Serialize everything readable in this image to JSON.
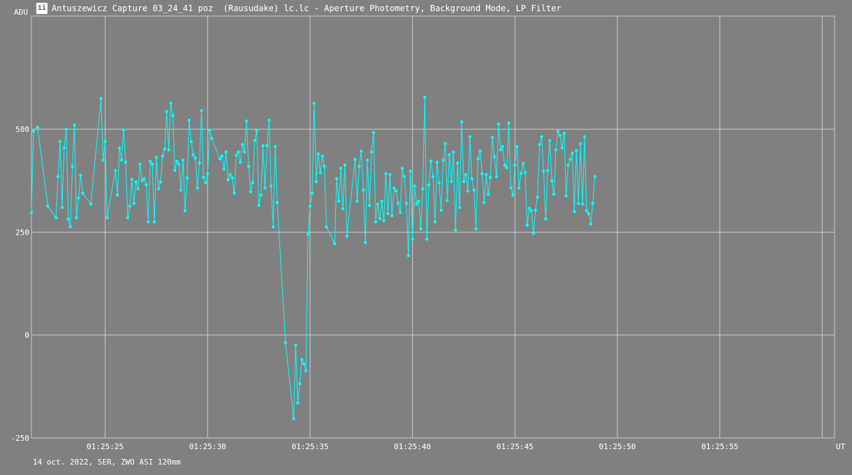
{
  "window": {
    "title": "Antuszewicz Capture 03_24_41 poz  (Rausudake) lc.lc - Aperture Photometry, Background Mode, LP Filter",
    "icon": "light-curve-app-icon"
  },
  "footer": {
    "text": "14 oct. 2022, SER, ZWO ASI 120mm"
  },
  "chart_data": {
    "type": "line",
    "ylabel": "ADU",
    "xlabel": "UT",
    "ylim": [
      -250,
      775
    ],
    "y_ticks": [
      500,
      250,
      0,
      -250
    ],
    "x_ticks": [
      "01:25:25",
      "01:25:30",
      "01:25:35",
      "01:25:40",
      "01:25:45",
      "01:25:50",
      "01:25:55"
    ],
    "x_tick_seconds": [
      25,
      30,
      35,
      40,
      45,
      50,
      55
    ],
    "x_start_seconds": 21.4,
    "x_end_seconds": 60.6,
    "series": [
      {
        "color": "#00ffff",
        "points": [
          [
            21.4,
            298
          ],
          [
            21.5,
            495
          ],
          [
            21.7,
            505
          ],
          [
            22.2,
            313
          ],
          [
            22.6,
            285
          ],
          [
            22.7,
            385
          ],
          [
            22.8,
            470
          ],
          [
            22.9,
            310
          ],
          [
            23.0,
            455
          ],
          [
            23.1,
            500
          ],
          [
            23.2,
            282
          ],
          [
            23.3,
            263
          ],
          [
            23.4,
            410
          ],
          [
            23.5,
            510
          ],
          [
            23.6,
            285
          ],
          [
            23.7,
            333
          ],
          [
            23.8,
            388
          ],
          [
            23.9,
            345
          ],
          [
            24.3,
            318
          ],
          [
            24.8,
            575
          ],
          [
            24.9,
            425
          ],
          [
            25.0,
            470
          ],
          [
            25.1,
            285
          ],
          [
            25.5,
            400
          ],
          [
            25.6,
            340
          ],
          [
            25.7,
            455
          ],
          [
            25.8,
            425
          ],
          [
            25.9,
            498
          ],
          [
            26.0,
            420
          ],
          [
            26.1,
            285
          ],
          [
            26.2,
            313
          ],
          [
            26.3,
            378
          ],
          [
            26.4,
            320
          ],
          [
            26.5,
            372
          ],
          [
            26.6,
            355
          ],
          [
            26.7,
            415
          ],
          [
            26.8,
            375
          ],
          [
            26.9,
            380
          ],
          [
            27.0,
            365
          ],
          [
            27.1,
            275
          ],
          [
            27.2,
            422
          ],
          [
            27.3,
            415
          ],
          [
            27.4,
            275
          ],
          [
            27.5,
            432
          ],
          [
            27.6,
            355
          ],
          [
            27.7,
            372
          ],
          [
            27.8,
            435
          ],
          [
            27.9,
            452
          ],
          [
            28.0,
            543
          ],
          [
            28.1,
            450
          ],
          [
            28.2,
            563
          ],
          [
            28.3,
            533
          ],
          [
            28.4,
            400
          ],
          [
            28.5,
            422
          ],
          [
            28.6,
            415
          ],
          [
            28.7,
            352
          ],
          [
            28.8,
            425
          ],
          [
            28.9,
            302
          ],
          [
            29.0,
            382
          ],
          [
            29.1,
            522
          ],
          [
            29.2,
            470
          ],
          [
            29.3,
            438
          ],
          [
            29.4,
            430
          ],
          [
            29.5,
            357
          ],
          [
            29.6,
            418
          ],
          [
            29.7,
            545
          ],
          [
            29.8,
            383
          ],
          [
            29.9,
            370
          ],
          [
            30.0,
            392
          ],
          [
            30.1,
            498
          ],
          [
            30.2,
            478
          ],
          [
            30.6,
            428
          ],
          [
            30.7,
            435
          ],
          [
            30.8,
            403
          ],
          [
            30.9,
            445
          ],
          [
            31.0,
            377
          ],
          [
            31.1,
            390
          ],
          [
            31.2,
            382
          ],
          [
            31.3,
            345
          ],
          [
            31.4,
            437
          ],
          [
            31.5,
            445
          ],
          [
            31.6,
            420
          ],
          [
            31.7,
            463
          ],
          [
            31.8,
            445
          ],
          [
            31.9,
            520
          ],
          [
            32.0,
            410
          ],
          [
            32.1,
            348
          ],
          [
            32.2,
            370
          ],
          [
            32.3,
            473
          ],
          [
            32.4,
            498
          ],
          [
            32.5,
            315
          ],
          [
            32.6,
            340
          ],
          [
            32.7,
            460
          ],
          [
            32.8,
            357
          ],
          [
            32.9,
            460
          ],
          [
            33.0,
            522
          ],
          [
            33.1,
            362
          ],
          [
            33.2,
            263
          ],
          [
            33.3,
            458
          ],
          [
            33.4,
            322
          ],
          [
            33.8,
            -18
          ],
          [
            34.2,
            -203
          ],
          [
            34.3,
            -25
          ],
          [
            34.4,
            -165
          ],
          [
            34.5,
            -118
          ],
          [
            34.6,
            -60
          ],
          [
            34.7,
            -70
          ],
          [
            34.8,
            -87
          ],
          [
            34.9,
            245
          ],
          [
            35.0,
            313
          ],
          [
            35.1,
            345
          ],
          [
            35.2,
            563
          ],
          [
            35.3,
            373
          ],
          [
            35.4,
            440
          ],
          [
            35.5,
            395
          ],
          [
            35.6,
            435
          ],
          [
            35.7,
            410
          ],
          [
            35.8,
            263
          ],
          [
            36.2,
            222
          ],
          [
            36.3,
            380
          ],
          [
            36.4,
            325
          ],
          [
            36.5,
            405
          ],
          [
            36.6,
            307
          ],
          [
            36.7,
            413
          ],
          [
            36.8,
            240
          ],
          [
            37.2,
            427
          ],
          [
            37.3,
            325
          ],
          [
            37.4,
            410
          ],
          [
            37.5,
            447
          ],
          [
            37.6,
            352
          ],
          [
            37.7,
            225
          ],
          [
            37.8,
            425
          ],
          [
            37.9,
            315
          ],
          [
            38.0,
            445
          ],
          [
            38.1,
            492
          ],
          [
            38.2,
            275
          ],
          [
            38.3,
            318
          ],
          [
            38.4,
            283
          ],
          [
            38.5,
            325
          ],
          [
            38.6,
            278
          ],
          [
            38.7,
            392
          ],
          [
            38.8,
            295
          ],
          [
            38.9,
            390
          ],
          [
            39.0,
            290
          ],
          [
            39.1,
            357
          ],
          [
            39.2,
            350
          ],
          [
            39.3,
            320
          ],
          [
            39.4,
            298
          ],
          [
            39.5,
            405
          ],
          [
            39.6,
            385
          ],
          [
            39.7,
            320
          ],
          [
            39.8,
            193
          ],
          [
            39.9,
            398
          ],
          [
            40.0,
            233
          ],
          [
            40.1,
            362
          ],
          [
            40.2,
            318
          ],
          [
            40.3,
            325
          ],
          [
            40.4,
            258
          ],
          [
            40.5,
            355
          ],
          [
            40.6,
            578
          ],
          [
            40.7,
            233
          ],
          [
            40.8,
            365
          ],
          [
            40.9,
            423
          ],
          [
            41.0,
            385
          ],
          [
            41.1,
            275
          ],
          [
            41.2,
            420
          ],
          [
            41.3,
            370
          ],
          [
            41.4,
            303
          ],
          [
            41.5,
            425
          ],
          [
            41.6,
            465
          ],
          [
            41.7,
            327
          ],
          [
            41.8,
            438
          ],
          [
            41.9,
            373
          ],
          [
            42.0,
            445
          ],
          [
            42.1,
            255
          ],
          [
            42.2,
            418
          ],
          [
            42.3,
            310
          ],
          [
            42.4,
            518
          ],
          [
            42.5,
            373
          ],
          [
            42.6,
            390
          ],
          [
            42.7,
            350
          ],
          [
            42.8,
            482
          ],
          [
            42.9,
            380
          ],
          [
            43.0,
            352
          ],
          [
            43.1,
            258
          ],
          [
            43.2,
            428
          ],
          [
            43.3,
            447
          ],
          [
            43.4,
            392
          ],
          [
            43.5,
            322
          ],
          [
            43.6,
            390
          ],
          [
            43.7,
            342
          ],
          [
            43.8,
            383
          ],
          [
            43.9,
            480
          ],
          [
            44.0,
            433
          ],
          [
            44.1,
            385
          ],
          [
            44.2,
            513
          ],
          [
            44.3,
            450
          ],
          [
            44.4,
            458
          ],
          [
            44.5,
            412
          ],
          [
            44.6,
            407
          ],
          [
            44.7,
            515
          ],
          [
            44.8,
            358
          ],
          [
            44.9,
            340
          ],
          [
            45.0,
            413
          ],
          [
            45.1,
            458
          ],
          [
            45.2,
            357
          ],
          [
            45.3,
            393
          ],
          [
            45.4,
            417
          ],
          [
            45.5,
            395
          ],
          [
            45.6,
            267
          ],
          [
            45.7,
            308
          ],
          [
            45.8,
            302
          ],
          [
            45.9,
            247
          ],
          [
            46.0,
            303
          ],
          [
            46.1,
            335
          ],
          [
            46.2,
            463
          ],
          [
            46.3,
            482
          ],
          [
            46.4,
            398
          ],
          [
            46.5,
            282
          ],
          [
            46.6,
            400
          ],
          [
            46.7,
            472
          ],
          [
            46.8,
            375
          ],
          [
            46.9,
            342
          ],
          [
            47.0,
            450
          ],
          [
            47.1,
            495
          ],
          [
            47.2,
            485
          ],
          [
            47.3,
            455
          ],
          [
            47.4,
            490
          ],
          [
            47.5,
            338
          ],
          [
            47.6,
            413
          ],
          [
            47.7,
            427
          ],
          [
            47.8,
            442
          ],
          [
            47.9,
            300
          ],
          [
            48.0,
            448
          ],
          [
            48.1,
            320
          ],
          [
            48.2,
            465
          ],
          [
            48.3,
            318
          ],
          [
            48.4,
            482
          ],
          [
            48.5,
            302
          ],
          [
            48.6,
            295
          ],
          [
            48.7,
            270
          ],
          [
            48.8,
            320
          ],
          [
            48.9,
            385
          ]
        ]
      }
    ]
  }
}
